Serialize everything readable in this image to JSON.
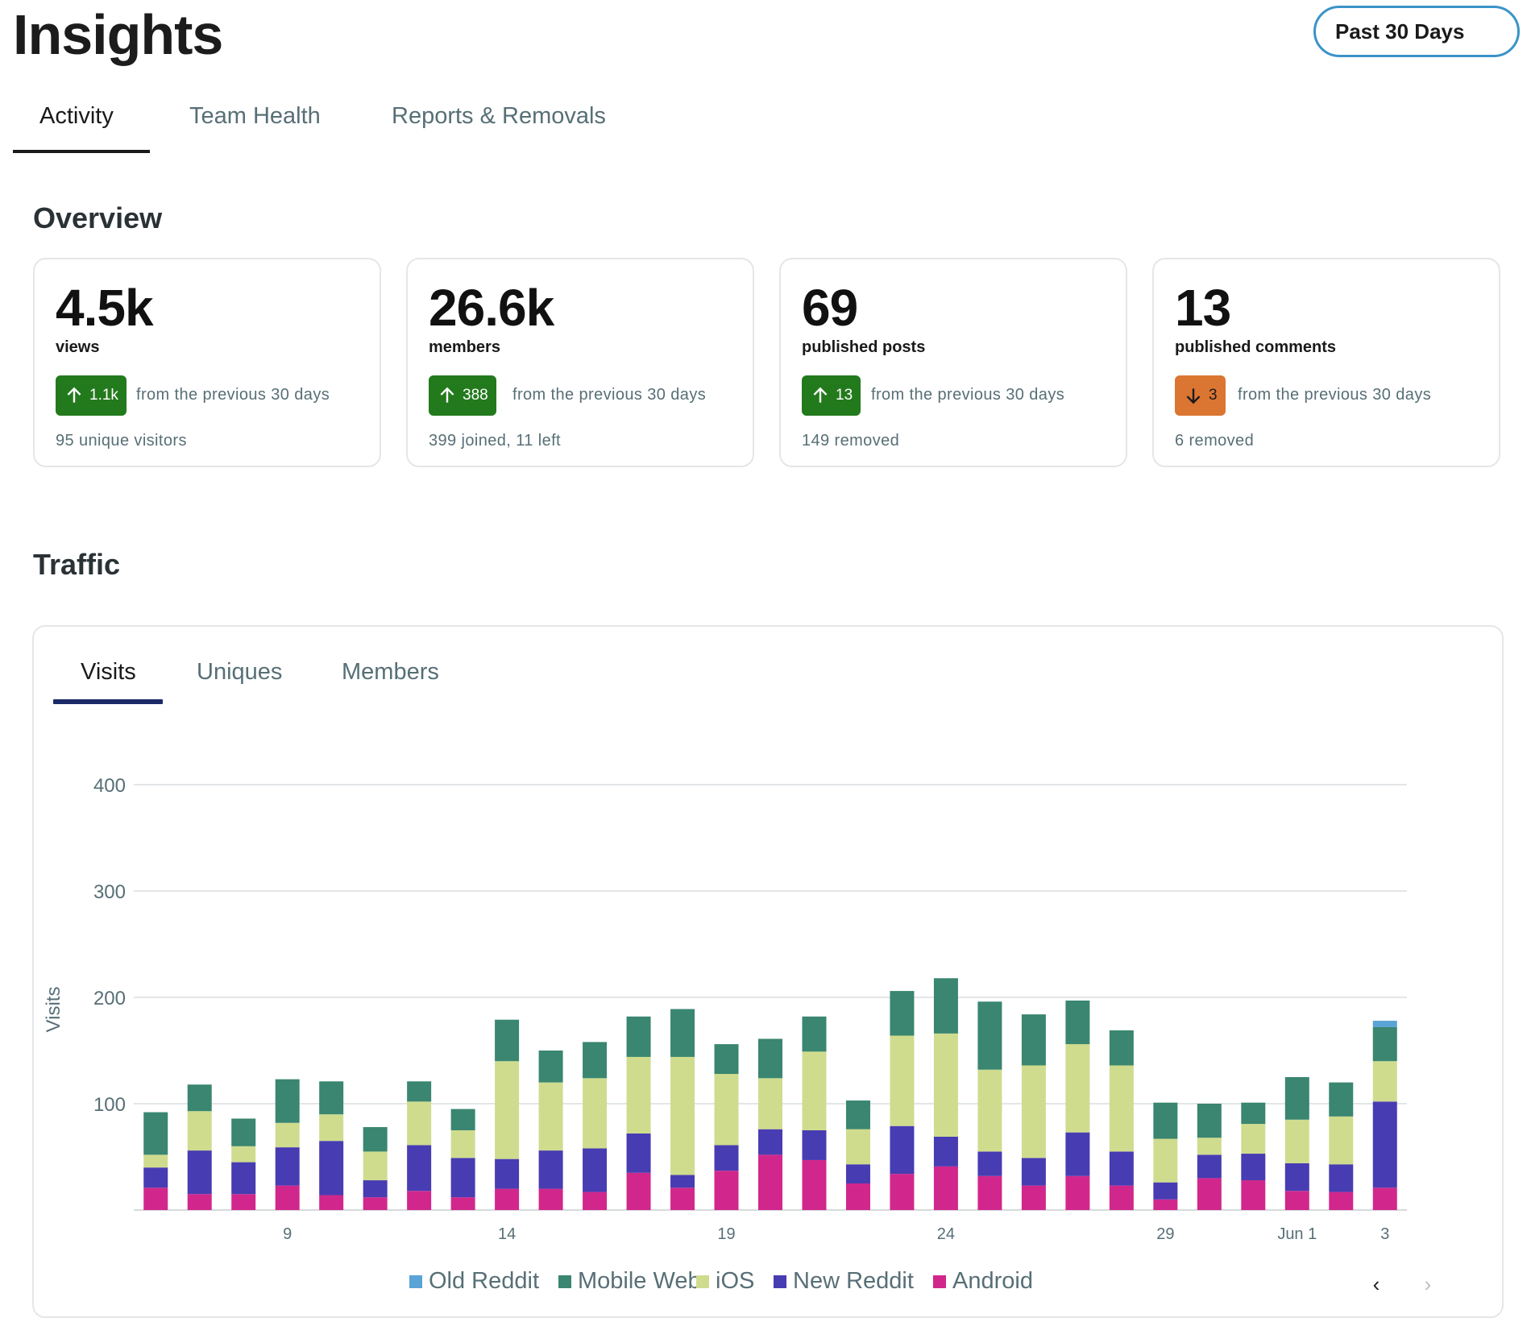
{
  "page": {
    "title": "Insights",
    "range_button": "Past 30 Days",
    "tabs": [
      "Activity",
      "Team Health",
      "Reports & Removals"
    ]
  },
  "overview": {
    "title": "Overview",
    "cards": [
      {
        "value": "4.5k",
        "label": "views",
        "delta": "1.1k",
        "direction": "up",
        "delta_text": "from the previous 30 days",
        "sub": "95 unique visitors"
      },
      {
        "value": "26.6k",
        "label": "members",
        "delta": "388",
        "direction": "up",
        "delta_text": "from the previous 30 days",
        "sub": "399 joined, 11 left"
      },
      {
        "value": "69",
        "label": "published posts",
        "delta": "13",
        "direction": "up",
        "delta_text": "from the previous 30 days",
        "sub": "149 removed"
      },
      {
        "value": "13",
        "label": "published comments",
        "delta": "3",
        "direction": "down",
        "delta_text": "from the previous 30 days",
        "sub": "6 removed"
      }
    ]
  },
  "traffic": {
    "title": "Traffic",
    "tabs": [
      "Visits",
      "Uniques",
      "Members"
    ]
  },
  "colors": {
    "up": "#237a1d",
    "down": "#db7532",
    "old_reddit": "#5aa3d6",
    "mobile_web": "#3a8670",
    "ios": "#cfdc8e",
    "new_reddit": "#483cb2",
    "android": "#d1278c"
  },
  "chart_data": {
    "type": "bar",
    "stacked": true,
    "ylabel": "Visits",
    "ylim": [
      0,
      400
    ],
    "yticks": [
      100,
      200,
      300,
      400
    ],
    "x_tick_labels": [
      {
        "index": 3,
        "label": "9"
      },
      {
        "index": 8,
        "label": "14"
      },
      {
        "index": 13,
        "label": "19"
      },
      {
        "index": 18,
        "label": "24"
      },
      {
        "index": 23,
        "label": "29"
      },
      {
        "index": 26,
        "label": "Jun 1"
      },
      {
        "index": 28,
        "label": "3"
      }
    ],
    "series": [
      {
        "name": "Android",
        "color": "#d1278c",
        "values": [
          21,
          15,
          15,
          23,
          14,
          12,
          18,
          12,
          20,
          20,
          17,
          35,
          21,
          37,
          52,
          47,
          25,
          34,
          41,
          32,
          23,
          32,
          23,
          10,
          30,
          28,
          18,
          17,
          21
        ]
      },
      {
        "name": "New Reddit",
        "color": "#483cb2",
        "values": [
          19,
          41,
          30,
          36,
          51,
          16,
          43,
          37,
          28,
          36,
          41,
          37,
          12,
          24,
          24,
          28,
          18,
          45,
          28,
          23,
          26,
          41,
          32,
          16,
          22,
          25,
          26,
          26,
          81
        ]
      },
      {
        "name": "iOS",
        "color": "#cfdc8e",
        "values": [
          12,
          37,
          15,
          23,
          25,
          27,
          41,
          26,
          92,
          64,
          66,
          72,
          111,
          67,
          48,
          74,
          33,
          85,
          97,
          77,
          87,
          83,
          81,
          41,
          16,
          28,
          41,
          45,
          38
        ]
      },
      {
        "name": "Mobile Web",
        "color": "#3a8670",
        "values": [
          40,
          25,
          26,
          41,
          31,
          23,
          19,
          20,
          39,
          30,
          34,
          38,
          45,
          28,
          37,
          33,
          27,
          42,
          52,
          64,
          48,
          41,
          33,
          34,
          32,
          20,
          40,
          32,
          32
        ]
      },
      {
        "name": "Old Reddit",
        "color": "#5aa3d6",
        "values": [
          0,
          0,
          0,
          0,
          0,
          0,
          0,
          0,
          0,
          0,
          0,
          0,
          0,
          0,
          0,
          0,
          0,
          0,
          0,
          0,
          0,
          0,
          0,
          0,
          0,
          0,
          0,
          0,
          6
        ]
      }
    ],
    "legend": [
      "Old Reddit",
      "Mobile Web",
      "iOS",
      "New Reddit",
      "Android"
    ]
  }
}
